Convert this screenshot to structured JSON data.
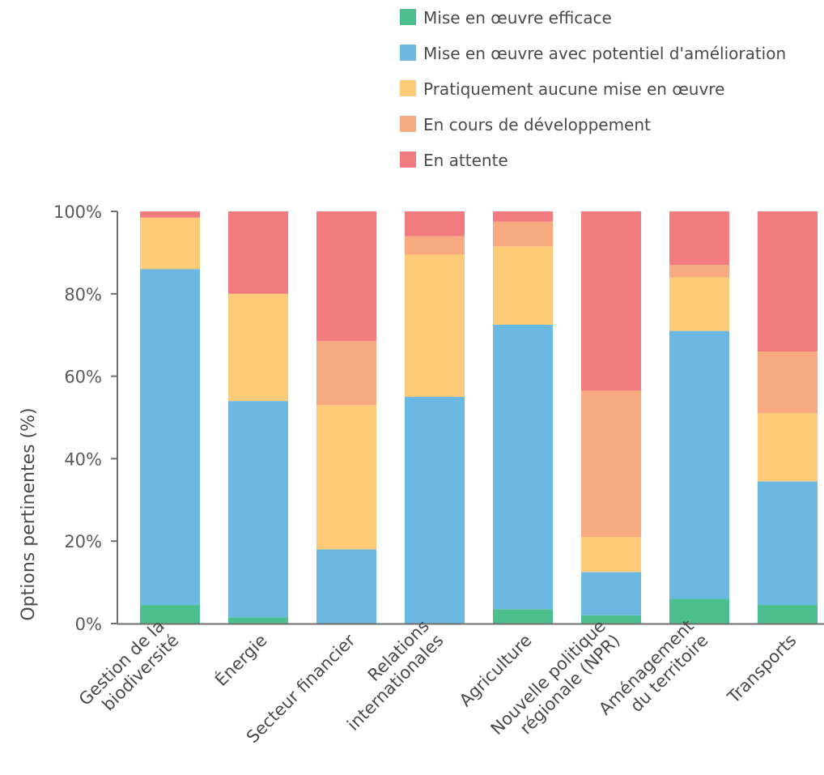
{
  "chart_data": {
    "type": "bar",
    "stacked": true,
    "categories": [
      [
        "Gestion de la",
        "biodiversité"
      ],
      [
        "Énergie"
      ],
      [
        "Secteur financier"
      ],
      [
        "Relations",
        "internationales"
      ],
      [
        "Agriculture"
      ],
      [
        "Nouvelle politique",
        "régionale (NPR)"
      ],
      [
        "Aménagement",
        "du territoire"
      ],
      [
        "Transports"
      ]
    ],
    "series": [
      {
        "name": "Mise en œuvre efficace",
        "color": "#4dbf8f",
        "values": [
          4.5,
          1.5,
          0,
          0,
          3.5,
          2,
          6,
          4.5
        ]
      },
      {
        "name": "Mise en œuvre avec potentiel d'amélioration",
        "color": "#6bb8e3",
        "values": [
          81.5,
          52.5,
          18,
          55,
          69,
          10.5,
          65,
          30
        ]
      },
      {
        "name": "Pratiquement aucune mise en œuvre",
        "color": "#fdcb78",
        "values": [
          12.5,
          26,
          35,
          34.5,
          19,
          8.5,
          13,
          16.5
        ]
      },
      {
        "name": "En cours de développement",
        "color": "#f7a97f",
        "values": [
          0,
          0,
          15.5,
          4.5,
          6,
          35.5,
          3,
          15
        ]
      },
      {
        "name": "En attente",
        "color": "#f27b80",
        "values": [
          1.5,
          20,
          31.5,
          6,
          2.5,
          43.5,
          13,
          34
        ]
      }
    ],
    "title": "",
    "xlabel": "",
    "ylabel": "Options pertinentes (%)",
    "ylim": [
      0,
      100
    ],
    "yticks": [
      "0%",
      "20%",
      "40%",
      "60%",
      "80%",
      "100%"
    ],
    "grid": false,
    "legend_position": "top-right"
  }
}
